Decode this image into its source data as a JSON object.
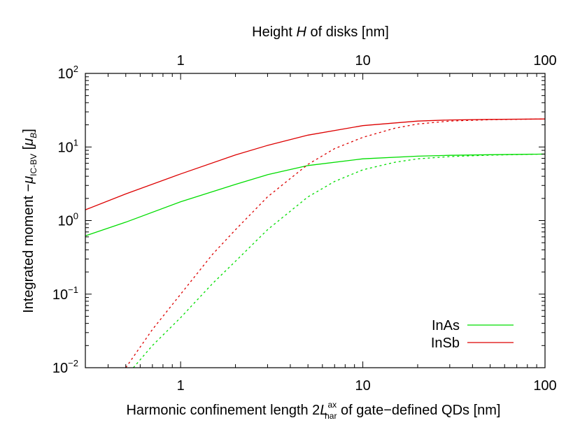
{
  "chart_data": {
    "type": "line",
    "xlabel_bottom": {
      "pre": "Harmonic confinement length 2",
      "sym": "L",
      "sup": "ax",
      "sub": "har",
      "post": " of gate−defined QDs [nm]"
    },
    "xlabel_top": {
      "pre": "Height ",
      "sym": "H",
      "post": " of disks [nm]"
    },
    "ylabel": {
      "pre": "Integrated moment −",
      "sym": "μ",
      "sub": "IC-BV",
      "mid": " [",
      "sym2": "μ",
      "sub2": "B",
      "post": "]"
    },
    "xscale": "log",
    "yscale": "log",
    "xlim": [
      0.3,
      100
    ],
    "ylim": [
      0.01,
      100
    ],
    "grid": false,
    "legend_position": "bottom-right",
    "x_ticks": [
      {
        "value": 1,
        "label": "1"
      },
      {
        "value": 10,
        "label": "10"
      },
      {
        "value": 100,
        "label": "100"
      }
    ],
    "x_top_ticks": [
      {
        "value": 1,
        "label": "1"
      },
      {
        "value": 10,
        "label": "10"
      },
      {
        "value": 100,
        "label": "100"
      }
    ],
    "y_ticks": [
      {
        "value": 0.01,
        "base": "10",
        "exp": "−2"
      },
      {
        "value": 0.1,
        "base": "10",
        "exp": "−1"
      },
      {
        "value": 1,
        "base": "10",
        "exp": "0"
      },
      {
        "value": 10,
        "base": "10",
        "exp": "1"
      },
      {
        "value": 100,
        "base": "10",
        "exp": "2"
      }
    ],
    "series": [
      {
        "name": "InAs",
        "color": "#00dd00",
        "style": "solid",
        "x": [
          0.3,
          0.5,
          1,
          2,
          3,
          5,
          10,
          20,
          30,
          50,
          100
        ],
        "y": [
          0.62,
          0.95,
          1.8,
          3.1,
          4.2,
          5.6,
          6.9,
          7.5,
          7.7,
          7.85,
          8.0
        ]
      },
      {
        "name": "InSb",
        "color": "#dd0000",
        "style": "solid",
        "x": [
          0.3,
          0.5,
          1,
          2,
          3,
          5,
          10,
          20,
          30,
          50,
          100
        ],
        "y": [
          1.4,
          2.3,
          4.3,
          7.8,
          10.5,
          14.5,
          19.5,
          22.5,
          23.3,
          23.7,
          24.0
        ]
      },
      {
        "name": "",
        "color": "#00dd00",
        "style": "dashed",
        "x": [
          0.55,
          0.7,
          1,
          1.5,
          2,
          3,
          5,
          7,
          10,
          15,
          20,
          30,
          50,
          100
        ],
        "y": [
          0.01,
          0.02,
          0.048,
          0.14,
          0.28,
          0.75,
          2.1,
          3.4,
          4.9,
          6.2,
          6.9,
          7.4,
          7.75,
          8.0
        ]
      },
      {
        "name": "",
        "color": "#dd0000",
        "style": "dashed",
        "x": [
          0.5,
          0.7,
          1,
          1.5,
          2,
          3,
          5,
          7,
          10,
          15,
          20,
          30,
          50,
          100
        ],
        "y": [
          0.01,
          0.033,
          0.1,
          0.35,
          0.75,
          2.1,
          5.8,
          9.5,
          13.5,
          18.0,
          20.5,
          22.5,
          23.5,
          24.0
        ]
      }
    ]
  }
}
